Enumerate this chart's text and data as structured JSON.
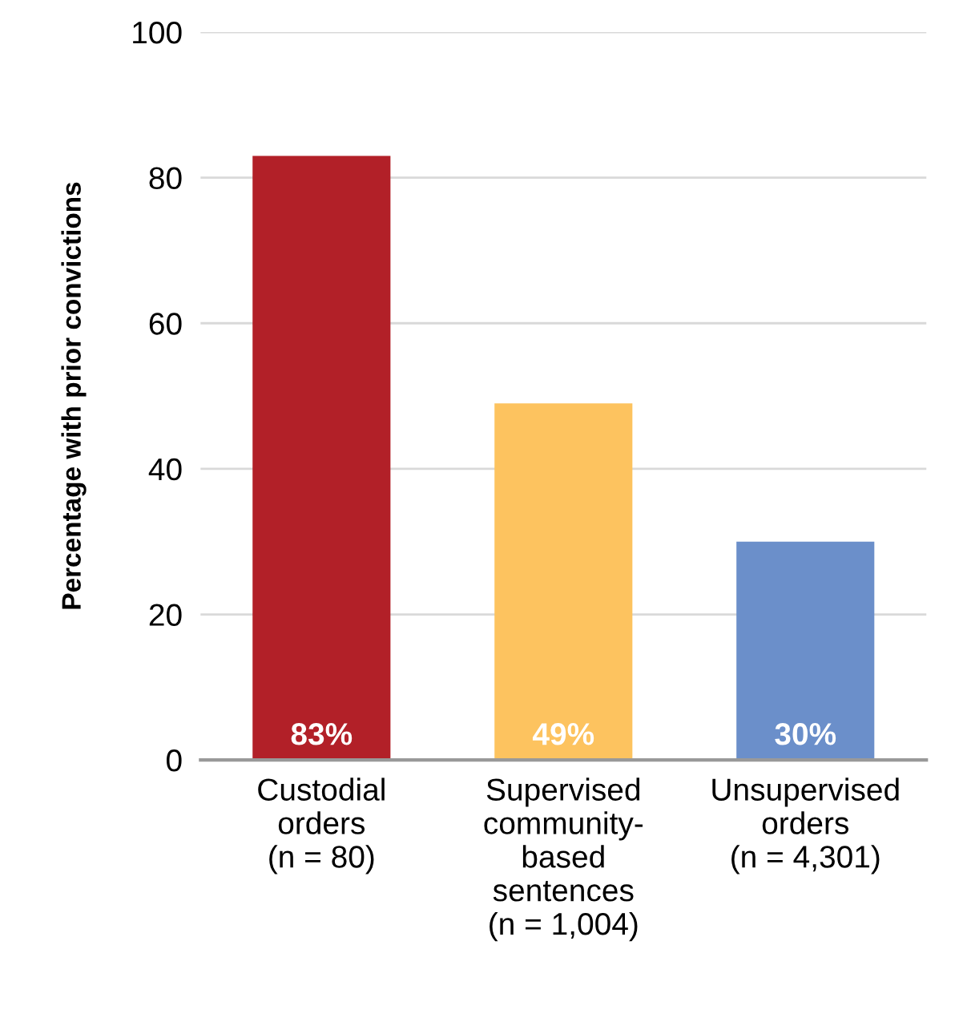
{
  "chart_data": {
    "type": "bar",
    "ylabel": "Percentage with prior convictions",
    "categories": [
      "Custodial\norders\n(n = 80)",
      "Supervised\ncommunity-\nbased\nsentences\n(n = 1,004)",
      "Unsupervised\norders\n(n = 4,301)"
    ],
    "values": [
      83,
      49,
      30
    ],
    "colors": [
      "#b22028",
      "#fdc35f",
      "#6b8fca"
    ],
    "value_labels": [
      "83%",
      "49%",
      "30%"
    ],
    "ylim": [
      0,
      100
    ],
    "yticks": [
      0,
      20,
      40,
      60,
      80,
      100
    ],
    "grid": "y"
  }
}
